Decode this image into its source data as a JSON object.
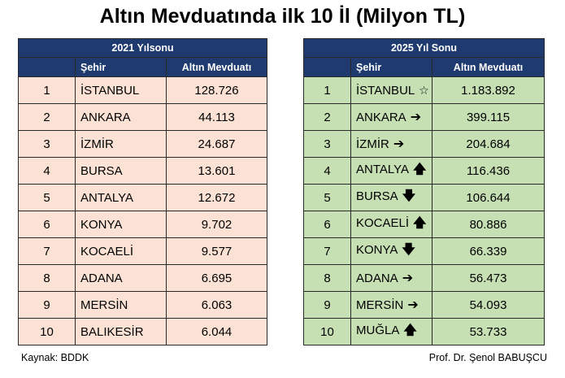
{
  "title": "Altın Mevduatında ilk 10 İl (Milyon TL)",
  "left_table": {
    "header": "2021 Yılsonu",
    "col_city": "Şehir",
    "col_value": "Altın Mevduatı",
    "rows": [
      {
        "rank": "1",
        "city": "İSTANBUL",
        "value": "128.726"
      },
      {
        "rank": "2",
        "city": "ANKARA",
        "value": "44.113"
      },
      {
        "rank": "3",
        "city": "İZMİR",
        "value": "24.687"
      },
      {
        "rank": "4",
        "city": "BURSA",
        "value": "13.601"
      },
      {
        "rank": "5",
        "city": "ANTALYA",
        "value": "12.672"
      },
      {
        "rank": "6",
        "city": "KONYA",
        "value": "9.702"
      },
      {
        "rank": "7",
        "city": "KOCAELİ",
        "value": "9.577"
      },
      {
        "rank": "8",
        "city": "ADANA",
        "value": "6.695"
      },
      {
        "rank": "9",
        "city": "MERSİN",
        "value": "6.063"
      },
      {
        "rank": "10",
        "city": "BALIKESİR",
        "value": "6.044"
      }
    ]
  },
  "right_table": {
    "header": "2025 Yıl Sonu",
    "col_city": "Şehir",
    "col_value": "Altın Mevduatı",
    "rows": [
      {
        "rank": "1",
        "city": "İSTANBUL",
        "marker": "☆",
        "marker_name": "star-icon",
        "value": "1.183.892"
      },
      {
        "rank": "2",
        "city": "ANKARA",
        "marker": "➔",
        "marker_name": "arrow-right-icon",
        "value": "399.115"
      },
      {
        "rank": "3",
        "city": "İZMİR",
        "marker": "➔",
        "marker_name": "arrow-right-icon",
        "value": "204.684"
      },
      {
        "rank": "4",
        "city": "ANTALYA",
        "marker": "🡅",
        "marker_name": "arrow-up-icon",
        "value": "116.436"
      },
      {
        "rank": "5",
        "city": "BURSA",
        "marker": "🡇",
        "marker_name": "arrow-down-icon",
        "value": "106.644"
      },
      {
        "rank": "6",
        "city": "KOCAELİ",
        "marker": "🡅",
        "marker_name": "arrow-up-icon",
        "value": "80.886"
      },
      {
        "rank": "7",
        "city": "KONYA",
        "marker": "🡇",
        "marker_name": "arrow-down-icon",
        "value": "66.339"
      },
      {
        "rank": "8",
        "city": "ADANA",
        "marker": "➔",
        "marker_name": "arrow-right-icon",
        "value": "56.473"
      },
      {
        "rank": "9",
        "city": "MERSİN",
        "marker": "➔",
        "marker_name": "arrow-right-icon",
        "value": "54.093"
      },
      {
        "rank": "10",
        "city": "MUĞLA",
        "marker": "🡅",
        "marker_name": "arrow-up-icon",
        "value": "53.733"
      }
    ]
  },
  "source": "Kaynak: BDDK",
  "author": "Prof. Dr. Şenol BABUŞCU",
  "colors": {
    "header_bg": "#1f3a6e",
    "left_row_bg": "#fbe2d5",
    "right_row_bg": "#c6e0b4"
  }
}
